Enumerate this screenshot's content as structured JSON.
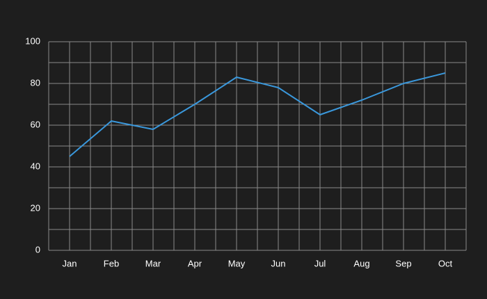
{
  "chart_data": {
    "type": "line",
    "categories": [
      "Jan",
      "Feb",
      "Mar",
      "Apr",
      "May",
      "Jun",
      "Jul",
      "Aug",
      "Sep",
      "Oct"
    ],
    "series": [
      {
        "color": "#3a98dc",
        "values": [
          45,
          62,
          58,
          70,
          83,
          78,
          65,
          72,
          80,
          85
        ]
      }
    ],
    "ylim": [
      0,
      100
    ],
    "yticks": [
      0,
      20,
      40,
      60,
      80,
      100
    ],
    "grid": true
  }
}
